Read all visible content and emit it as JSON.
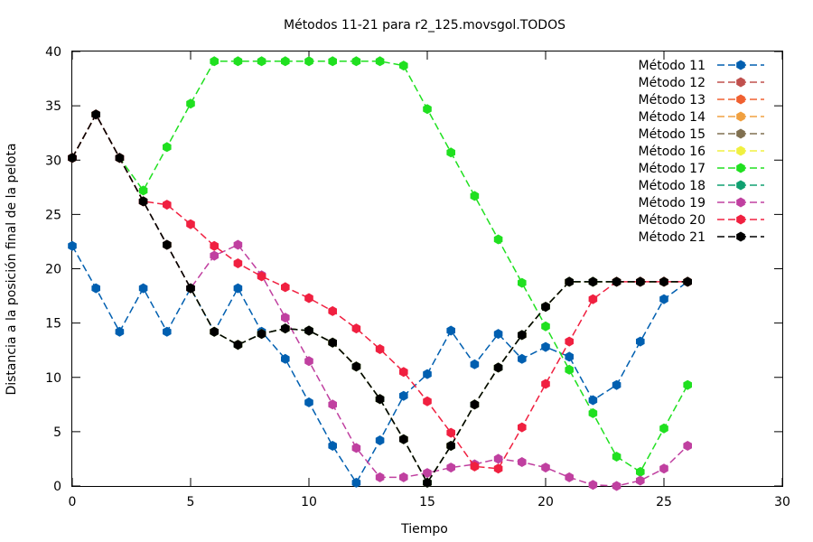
{
  "chart_data": {
    "type": "line",
    "title": "Métodos 11-21 para r2_125.movsgol.TODOS",
    "xlabel": "Tiempo",
    "ylabel": "Distancia a la posición final de la pelota",
    "xlim": [
      0,
      30
    ],
    "ylim": [
      0,
      40
    ],
    "xticks": [
      0,
      5,
      10,
      15,
      20,
      25,
      30
    ],
    "yticks": [
      0,
      5,
      10,
      15,
      20,
      25,
      30,
      35,
      40
    ],
    "grid": false,
    "legend_position": "top-right",
    "x": [
      0,
      1,
      2,
      3,
      4,
      5,
      6,
      7,
      8,
      9,
      10,
      11,
      12,
      13,
      14,
      15,
      16,
      17,
      18,
      19,
      20,
      21,
      22,
      23,
      24,
      25,
      26
    ],
    "series": [
      {
        "name": "Método 11",
        "color": "#005fb0",
        "values": [
          22.1,
          18.2,
          14.2,
          18.2,
          14.2,
          18.2,
          14.2,
          18.2,
          14.2,
          11.7,
          7.7,
          3.7,
          0.3,
          4.2,
          8.3,
          10.3,
          14.3,
          11.2,
          14.0,
          11.7,
          12.8,
          11.9,
          7.9,
          9.3,
          13.3,
          17.2,
          18.8
        ]
      },
      {
        "name": "Método 12",
        "color": "#c0504d",
        "values": [
          30.2,
          34.2,
          30.2,
          26.2,
          22.2,
          18.2,
          14.2,
          13.0,
          14.0,
          14.5,
          14.3,
          13.2,
          11.0,
          8.0,
          4.3,
          0.3,
          3.7,
          7.5,
          10.9,
          13.9,
          16.5,
          18.8,
          18.8,
          18.8,
          18.8,
          18.8,
          18.8
        ]
      },
      {
        "name": "Método 13",
        "color": "#f06030",
        "values": [
          30.2,
          34.2,
          30.2,
          26.2,
          22.2,
          18.2,
          14.2,
          13.0,
          14.0,
          14.5,
          14.3,
          13.2,
          11.0,
          8.0,
          4.3,
          0.3,
          3.7,
          7.5,
          10.9,
          13.9,
          16.5,
          18.8,
          18.8,
          18.8,
          18.8,
          18.8,
          18.8
        ]
      },
      {
        "name": "Método 14",
        "color": "#f0a040",
        "values": [
          30.2,
          34.2,
          30.2,
          26.2,
          22.2,
          18.2,
          14.2,
          13.0,
          14.0,
          14.5,
          14.3,
          13.2,
          11.0,
          8.0,
          4.3,
          0.3,
          3.7,
          7.5,
          10.9,
          13.9,
          16.5,
          18.8,
          18.8,
          18.8,
          18.8,
          18.8,
          18.8
        ]
      },
      {
        "name": "Método 15",
        "color": "#807050",
        "values": [
          30.2,
          34.2,
          30.2,
          26.2,
          22.2,
          18.2,
          14.2,
          13.0,
          14.0,
          14.5,
          14.3,
          13.2,
          11.0,
          8.0,
          4.3,
          0.3,
          3.7,
          7.5,
          10.9,
          13.9,
          16.5,
          18.8,
          18.8,
          18.8,
          18.8,
          18.8,
          18.8
        ]
      },
      {
        "name": "Método 16",
        "color": "#f0f040",
        "values": [
          30.2,
          34.2,
          30.2,
          26.2,
          22.2,
          18.2,
          14.2,
          13.0,
          14.0,
          14.5,
          14.3,
          13.2,
          11.0,
          8.0,
          4.3,
          0.3,
          3.7,
          7.5,
          10.9,
          13.9,
          16.5,
          18.8,
          18.8,
          18.8,
          18.8,
          18.8,
          18.8
        ]
      },
      {
        "name": "Método 17",
        "color": "#20e020",
        "values": [
          30.2,
          34.2,
          30.2,
          27.2,
          31.2,
          35.2,
          39.1,
          39.1,
          39.1,
          39.1,
          39.1,
          39.1,
          39.1,
          39.1,
          38.7,
          34.7,
          30.7,
          26.7,
          22.7,
          18.7,
          14.7,
          10.7,
          6.7,
          2.7,
          1.3,
          5.3,
          9.3
        ]
      },
      {
        "name": "Método 18",
        "color": "#10a070",
        "values": [
          30.2,
          34.2,
          30.2,
          26.2,
          22.2,
          18.2,
          14.2,
          13.0,
          14.0,
          14.5,
          14.3,
          13.2,
          11.0,
          8.0,
          4.3,
          0.3,
          3.7,
          7.5,
          10.9,
          13.9,
          16.5,
          18.8,
          18.8,
          18.8,
          18.8,
          18.8,
          18.8
        ]
      },
      {
        "name": "Método 19",
        "color": "#c040a0",
        "values": [
          30.2,
          34.2,
          30.2,
          26.2,
          22.2,
          18.2,
          21.2,
          22.2,
          19.4,
          15.5,
          11.5,
          7.5,
          3.5,
          0.8,
          0.8,
          1.2,
          1.7,
          2.0,
          2.5,
          2.2,
          1.7,
          0.8,
          0.1,
          0.0,
          0.5,
          1.6,
          3.7
        ]
      },
      {
        "name": "Método 20",
        "color": "#f02040",
        "values": [
          30.2,
          34.2,
          30.2,
          26.2,
          25.9,
          24.1,
          22.1,
          20.5,
          19.3,
          18.3,
          17.3,
          16.1,
          14.5,
          12.6,
          10.5,
          7.8,
          4.9,
          1.8,
          1.6,
          5.4,
          9.4,
          13.3,
          17.2,
          18.8,
          18.8,
          18.8,
          18.8
        ]
      },
      {
        "name": "Método 21",
        "color": "#000000",
        "values": [
          30.2,
          34.2,
          30.2,
          26.2,
          22.2,
          18.2,
          14.2,
          13.0,
          14.0,
          14.5,
          14.3,
          13.2,
          11.0,
          8.0,
          4.3,
          0.3,
          3.7,
          7.5,
          10.9,
          13.9,
          16.5,
          18.8,
          18.8,
          18.8,
          18.8,
          18.8,
          18.8
        ]
      }
    ]
  }
}
